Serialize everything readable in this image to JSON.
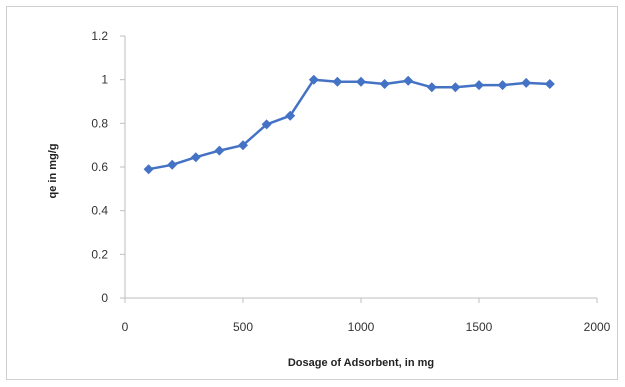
{
  "chart_data": {
    "type": "line",
    "title": "",
    "xlabel": "Dosage of Adsorbent, in mg",
    "ylabel": "qe in mg/g",
    "xlim": [
      0,
      2000
    ],
    "ylim": [
      0,
      1.2
    ],
    "x_ticks": [
      "0",
      "500",
      "1000",
      "1500",
      "2000"
    ],
    "y_ticks": [
      "0",
      "0.2",
      "0.4",
      "0.6",
      "0.8",
      "1",
      "1.2"
    ],
    "grid": false,
    "legend": "none",
    "series_color": "#4472c4",
    "marker": "diamond",
    "series": [
      {
        "x": [
          100,
          200,
          300,
          400,
          500,
          600,
          700,
          800,
          900,
          1000,
          1100,
          1200,
          1300,
          1400,
          1500,
          1600,
          1700,
          1800
        ],
        "values": [
          0.59,
          0.61,
          0.645,
          0.675,
          0.7,
          0.795,
          0.835,
          1.0,
          0.99,
          0.99,
          0.98,
          0.995,
          0.965,
          0.965,
          0.975,
          0.975,
          0.985,
          0.98
        ]
      }
    ]
  }
}
